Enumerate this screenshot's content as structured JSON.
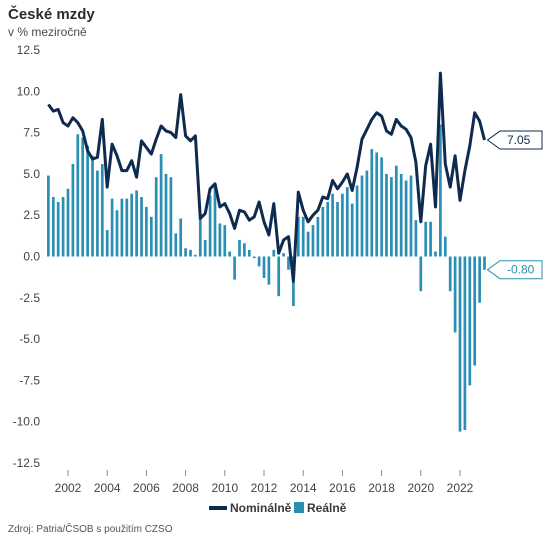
{
  "title": "České mzdy",
  "subtitle": "v % meziročně",
  "source": "Zdroj: Patria/ČSOB s použitím CZSO",
  "colors": {
    "nominal": "#0f2a4f",
    "real": "#2b8fb3",
    "axis_text": "#444444"
  },
  "chart_data": {
    "type": "line+bar",
    "title": "České mzdy",
    "subtitle": "v % meziročně",
    "ylim": [
      -12.5,
      12.5
    ],
    "yticks": [
      "12.5",
      "10.0",
      "7.5",
      "5.0",
      "2.5",
      "0.0",
      "-2.5",
      "-5.0",
      "-7.5",
      "-10.0",
      "-12.5"
    ],
    "ytick_values": [
      12.5,
      10,
      7.5,
      5,
      2.5,
      0,
      -2.5,
      -5,
      -7.5,
      -10,
      -12.5
    ],
    "xticks": [
      "2002",
      "2004",
      "2006",
      "2008",
      "2010",
      "2012",
      "2014",
      "2016",
      "2018",
      "2020",
      "2022"
    ],
    "xtick_values": [
      2002,
      2004,
      2006,
      2008,
      2010,
      2012,
      2014,
      2016,
      2018,
      2020,
      2022
    ],
    "x_start": 2001.0,
    "quarter_step": 0.25,
    "legend": {
      "position": "bottom-right",
      "entries": [
        "Nominálně",
        "Reálně"
      ]
    },
    "series": [
      {
        "name": "Nominálně",
        "type": "line",
        "color": "#0f2a4f",
        "values": [
          9.2,
          8.8,
          8.9,
          8.1,
          7.9,
          8.4,
          8.1,
          7.6,
          6.4,
          5.9,
          6.0,
          8.3,
          4.2,
          6.8,
          6.1,
          5.2,
          5.2,
          5.8,
          4.8,
          7.0,
          6.6,
          6.2,
          7.1,
          7.9,
          7.6,
          7.5,
          7.2,
          9.8,
          7.3,
          7.0,
          7.3,
          2.3,
          2.6,
          4.1,
          4.4,
          3.0,
          3.2,
          2.6,
          1.7,
          2.8,
          2.7,
          2.2,
          2.4,
          3.3,
          2.1,
          1.3,
          3.2,
          0.2,
          1.0,
          1.2,
          -1.5,
          3.9,
          2.8,
          2.1,
          2.5,
          2.8,
          3.6,
          3.5,
          4.6,
          4.1,
          4.5,
          5.0,
          4.0,
          5.4,
          7.1,
          7.7,
          8.3,
          8.7,
          8.5,
          7.6,
          7.4,
          8.3,
          7.9,
          7.7,
          7.2,
          5.7,
          2.1,
          5.5,
          6.8,
          3.0,
          11.1,
          5.6,
          4.2,
          6.1,
          3.4,
          5.2,
          6.7,
          8.7,
          8.2,
          7.05
        ],
        "last_label": "7.05"
      },
      {
        "name": "Reálně",
        "type": "bar",
        "color": "#2b8fb3",
        "values": [
          4.9,
          3.6,
          3.3,
          3.6,
          4.1,
          5.6,
          7.4,
          7.2,
          6.7,
          6.1,
          5.2,
          5.6,
          1.6,
          3.5,
          2.8,
          3.5,
          3.5,
          3.8,
          4.0,
          3.6,
          3.0,
          2.4,
          4.8,
          6.2,
          5.0,
          4.8,
          1.4,
          2.3,
          0.5,
          0.4,
          0.1,
          2.6,
          1.0,
          3.7,
          4.2,
          2.0,
          1.9,
          0.3,
          -1.4,
          1.0,
          0.8,
          0.4,
          -0.1,
          -0.6,
          -1.3,
          -1.7,
          0.4,
          -2.4,
          0.2,
          -0.8,
          -3.0,
          2.4,
          2.4,
          1.5,
          1.9,
          2.4,
          3.0,
          3.3,
          3.8,
          3.3,
          3.8,
          4.2,
          3.2,
          4.3,
          4.9,
          5.2,
          6.5,
          6.3,
          6.0,
          5.0,
          4.8,
          5.5,
          5.0,
          4.6,
          4.9,
          2.2,
          -2.1,
          2.1,
          2.1,
          0.3,
          8.0,
          1.2,
          -2.1,
          -4.6,
          -10.6,
          -10.5,
          -7.8,
          -6.6,
          -2.8,
          -0.8
        ],
        "last_label": "-0.80"
      }
    ]
  }
}
